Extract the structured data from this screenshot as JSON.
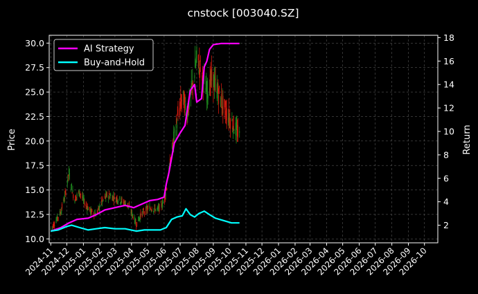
{
  "chart_data": {
    "type": "candlestick-line",
    "title": "cnstock [003040.SZ]",
    "xlabel": "",
    "ylabel_left": "Price",
    "ylabel_right": "Return",
    "ylim_left": [
      9.6,
      30.8
    ],
    "ylim_right": [
      0.5,
      18.2
    ],
    "xlim": [
      "2024-10-29",
      "2026-10-26"
    ],
    "grid": true,
    "legend_position": "upper-left",
    "x_tick_labels": [
      "2024-11",
      "2024-12",
      "2025-01",
      "2025-02",
      "2025-03",
      "2025-04",
      "2025-05",
      "2025-06",
      "2025-07",
      "2025-08",
      "2025-09",
      "2025-10",
      "2025-11",
      "2025-12",
      "2026-01",
      "2026-02",
      "2026-03",
      "2026-04",
      "2026-05",
      "2026-06",
      "2026-07",
      "2026-08",
      "2026-09",
      "2026-10"
    ],
    "y_left_ticks": [
      "10.0",
      "12.5",
      "15.0",
      "17.5",
      "20.0",
      "22.5",
      "25.0",
      "27.5",
      "30.0"
    ],
    "y_right_ticks": [
      "2",
      "4",
      "6",
      "8",
      "10",
      "12",
      "14",
      "16",
      "18"
    ],
    "colors": {
      "background": "#000000",
      "grid": "#555555",
      "up_candle": "#1f8c1f",
      "down_candle": "#d41a0f",
      "ai_strategy": "#ff00ff",
      "buy_and_hold": "#00ffff"
    },
    "price_keypoints": [
      [
        "2024-11-01",
        11.0
      ],
      [
        "2024-11-10",
        11.8
      ],
      [
        "2024-11-20",
        12.8
      ],
      [
        "2024-11-28",
        14.5
      ],
      [
        "2024-12-05",
        16.8
      ],
      [
        "2024-12-08",
        15.8
      ],
      [
        "2024-12-15",
        14.0
      ],
      [
        "2024-12-25",
        14.8
      ],
      [
        "2025-01-05",
        13.5
      ],
      [
        "2025-01-15",
        12.8
      ],
      [
        "2025-01-25",
        12.5
      ],
      [
        "2025-02-05",
        13.8
      ],
      [
        "2025-02-15",
        14.5
      ],
      [
        "2025-02-25",
        14.3
      ],
      [
        "2025-03-10",
        14.0
      ],
      [
        "2025-03-25",
        13.5
      ],
      [
        "2025-04-05",
        12.2
      ],
      [
        "2025-04-10",
        11.5
      ],
      [
        "2025-04-20",
        12.6
      ],
      [
        "2025-05-05",
        13.2
      ],
      [
        "2025-05-20",
        13.0
      ],
      [
        "2025-06-01",
        13.8
      ],
      [
        "2025-06-08",
        16.0
      ],
      [
        "2025-06-15",
        19.0
      ],
      [
        "2025-06-25",
        22.0
      ],
      [
        "2025-07-05",
        24.5
      ],
      [
        "2025-07-15",
        23.0
      ],
      [
        "2025-07-25",
        26.0
      ],
      [
        "2025-08-01",
        28.5
      ],
      [
        "2025-08-10",
        27.0
      ],
      [
        "2025-08-20",
        25.0
      ],
      [
        "2025-08-30",
        26.5
      ],
      [
        "2025-09-10",
        25.0
      ],
      [
        "2025-09-20",
        23.5
      ],
      [
        "2025-09-30",
        22.5
      ],
      [
        "2025-10-10",
        21.5
      ],
      [
        "2025-10-20",
        20.5
      ]
    ],
    "series": [
      {
        "name": "AI Strategy",
        "x": [
          "2024-11-01",
          "2024-11-20",
          "2024-12-05",
          "2024-12-20",
          "2025-01-10",
          "2025-01-25",
          "2025-02-10",
          "2025-03-01",
          "2025-03-20",
          "2025-04-05",
          "2025-04-20",
          "2025-05-05",
          "2025-05-20",
          "2025-06-01",
          "2025-06-05",
          "2025-06-10",
          "2025-06-20",
          "2025-06-30",
          "2025-07-10",
          "2025-07-20",
          "2025-07-28",
          "2025-08-01",
          "2025-08-10",
          "2025-08-15",
          "2025-08-20",
          "2025-08-25",
          "2025-09-01",
          "2025-09-15",
          "2025-10-01",
          "2025-10-20"
        ],
        "values": [
          1.5,
          1.8,
          2.2,
          2.5,
          2.6,
          2.9,
          3.3,
          3.5,
          3.7,
          3.5,
          3.8,
          4.1,
          4.2,
          4.4,
          5.5,
          6.5,
          9.0,
          9.8,
          10.5,
          13.5,
          14.0,
          12.5,
          12.8,
          15.5,
          16.0,
          17.0,
          17.4,
          17.5,
          17.5,
          17.5
        ]
      },
      {
        "name": "Buy-and-Hold",
        "x": [
          "2024-11-01",
          "2024-11-15",
          "2024-12-01",
          "2024-12-10",
          "2024-12-25",
          "2025-01-10",
          "2025-01-25",
          "2025-02-10",
          "2025-03-01",
          "2025-03-20",
          "2025-04-10",
          "2025-04-25",
          "2025-05-10",
          "2025-05-25",
          "2025-06-05",
          "2025-06-15",
          "2025-06-25",
          "2025-07-05",
          "2025-07-12",
          "2025-07-20",
          "2025-07-28",
          "2025-08-05",
          "2025-08-15",
          "2025-08-25",
          "2025-09-05",
          "2025-09-20",
          "2025-10-05",
          "2025-10-20"
        ],
        "values": [
          1.5,
          1.6,
          1.9,
          2.0,
          1.8,
          1.6,
          1.7,
          1.8,
          1.7,
          1.7,
          1.5,
          1.6,
          1.6,
          1.6,
          1.8,
          2.5,
          2.7,
          2.8,
          3.4,
          2.9,
          2.7,
          3.0,
          3.2,
          2.9,
          2.6,
          2.4,
          2.2,
          2.2
        ]
      }
    ]
  }
}
